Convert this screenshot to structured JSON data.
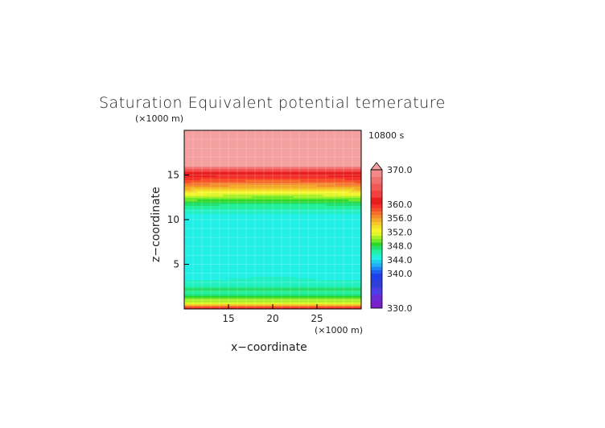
{
  "chart_data": {
    "type": "heatmap",
    "title": "Saturation Equivalent potential temerature",
    "time_label": "10800 s",
    "xlabel": "x−coordinate",
    "ylabel": "z−coordinate",
    "x_unit": "(×1000 m)",
    "z_unit": "(×1000 m)",
    "xlim": [
      10,
      30
    ],
    "zlim": [
      0,
      20
    ],
    "x_ticks": [
      15,
      20,
      25
    ],
    "z_ticks": [
      5,
      10,
      15
    ],
    "colorbar": {
      "min": 330.0,
      "max": 370.0,
      "labels": [
        "370.0",
        "360.0",
        "356.0",
        "352.0",
        "348.0",
        "344.0",
        "340.0",
        "330.0"
      ],
      "levels": [
        330,
        332,
        334,
        336,
        338,
        340,
        341,
        342,
        343,
        344,
        345,
        346,
        347,
        348,
        349,
        350,
        351,
        352,
        353,
        354,
        355,
        356,
        357,
        358,
        359,
        360,
        362,
        364,
        366,
        368,
        370
      ],
      "colors": [
        "#7a1fc8",
        "#6a2bd6",
        "#4b3ee6",
        "#2f3fd8",
        "#1f3fe8",
        "#1e5ff0",
        "#1e84f5",
        "#1fb0f5",
        "#1ed0ee",
        "#22f0e6",
        "#22f0c4",
        "#22f09a",
        "#22e070",
        "#2ad82a",
        "#6fe82a",
        "#aaf02a",
        "#e0f52a",
        "#f5f52a",
        "#f5e02a",
        "#f5c82a",
        "#f5ab2a",
        "#f58c2a",
        "#f56e2a",
        "#f5502a",
        "#f5322a",
        "#e81e1e",
        "#f04040",
        "#f25858",
        "#f27070",
        "#f28a8a",
        "#f5a0a0"
      ]
    },
    "profile": {
      "z_km": [
        0,
        0.3,
        0.6,
        1.2,
        1.8,
        2.2,
        2.6,
        3.2,
        4.0,
        5.0,
        7.0,
        9.0,
        10.5,
        11.5,
        12.3,
        13.0,
        13.6,
        14.2,
        14.8,
        15.4,
        16.0,
        20.0
      ],
      "theta_e": [
        361,
        357,
        352,
        349,
        346.5,
        347.5,
        345.5,
        345,
        344.5,
        344.7,
        344.5,
        344.4,
        344.8,
        346.5,
        349,
        352,
        355,
        357.5,
        359.5,
        362,
        370,
        370
      ]
    }
  }
}
